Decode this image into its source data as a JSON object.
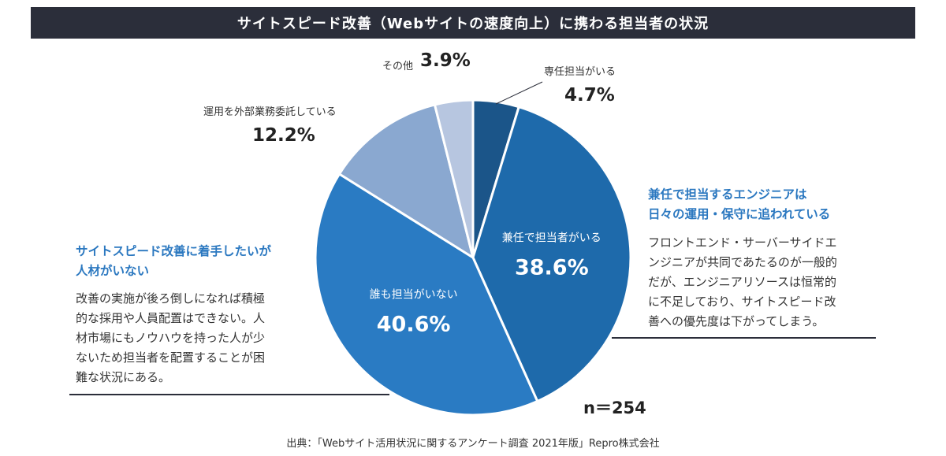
{
  "title": "サイトスピード改善（Webサイトの速度向上）に携わる担当者の状況",
  "chart_data": {
    "type": "pie",
    "slices": [
      {
        "label": "専任担当がいる",
        "value": 4.7,
        "pct_label": "4.7%",
        "color": "#1b5589"
      },
      {
        "label": "兼任で担当者がいる",
        "value": 38.6,
        "pct_label": "38.6%",
        "color": "#1e6aab"
      },
      {
        "label": "誰も担当がいない",
        "value": 40.6,
        "pct_label": "40.6%",
        "color": "#2a7bc3"
      },
      {
        "label": "運用を外部業務委託している",
        "value": 12.2,
        "pct_label": "12.2%",
        "color": "#8aa8d0"
      },
      {
        "label": "その他",
        "value": 3.9,
        "pct_label": "3.9%",
        "color": "#b7c6e0"
      }
    ],
    "start": "top",
    "direction": "clockwise",
    "n_label": "n＝254"
  },
  "callout_right": {
    "heading": [
      "兼任で担当するエンジニアは",
      "日々の運用・保守に追われている"
    ],
    "body": [
      "フロントエンド・サーバーサイドエ",
      "ンジニアが共同であたるのが一般的",
      "だが、エンジニアリソースは恒常的",
      "に不足しており、サイトスピード改",
      "善への優先度は下がってしまう。"
    ]
  },
  "callout_left": {
    "heading": [
      "サイトスピード改善に着手したいが",
      "人材がいない"
    ],
    "body": [
      "改善の実施が後ろ倒しになれば積極",
      "的な採用や人員配置はできない。人",
      "材市場にもノウハウを持った人が少",
      "ないため担当者を配置することが困",
      "難な状況にある。"
    ]
  },
  "source": "出典：「Webサイト活用状況に関するアンケート調査 2021年版」Repro株式会社"
}
